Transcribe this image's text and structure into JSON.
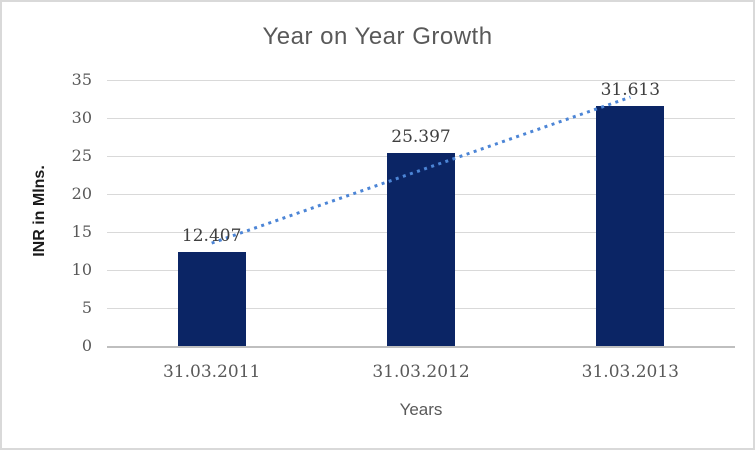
{
  "window": {
    "background": "#FFFFFF",
    "border_color": "#D9D9D9"
  },
  "chart_data": {
    "type": "bar",
    "title": "Year on Year Growth",
    "categories": [
      "31.03.2011",
      "31.03.2012",
      "31.03.2013"
    ],
    "values": [
      12.407,
      25.397,
      31.613
    ],
    "data_labels": [
      "12.407",
      "25.397",
      "31.613"
    ],
    "xlabel": "Years",
    "ylabel": "INR in Mlns.",
    "ylim": [
      0,
      35
    ],
    "yticks": [
      0,
      5,
      10,
      15,
      20,
      25,
      30,
      35
    ],
    "grid": true,
    "legend_position": "none",
    "trendline": {
      "type": "linear",
      "style": "dotted"
    },
    "colors": {
      "bar": "#0B2565",
      "trendline": "#4C85D6",
      "gridline": "#D9D9D9",
      "axis_line": "#BFBFBF",
      "title_text": "#595959",
      "tick_text": "#595959",
      "data_label_text": "#3F3F3F",
      "axis_title_text": "#1A1A1A"
    }
  }
}
